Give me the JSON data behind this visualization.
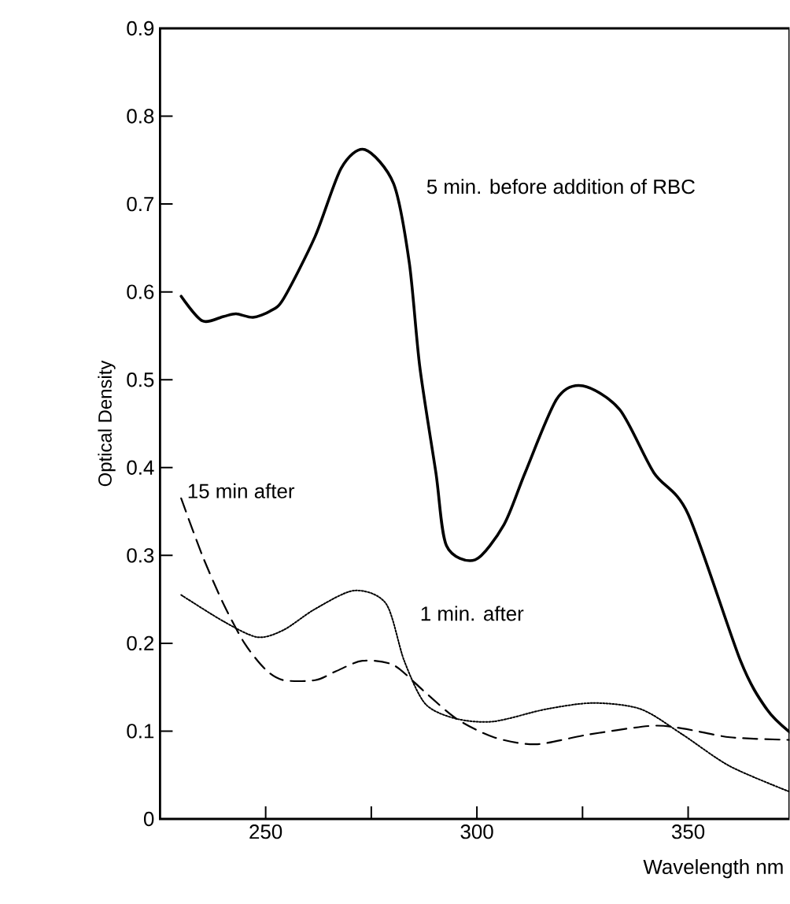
{
  "chart_data": {
    "type": "line",
    "xlabel": "Wavelength nm",
    "ylabel": "Optical Density",
    "xlim": [
      225,
      374
    ],
    "ylim": [
      0,
      0.9
    ],
    "xticks": [
      250,
      {
        "value": 275,
        "label": null
      },
      300,
      {
        "value": 325,
        "label": null
      },
      350
    ],
    "yticks": [
      0,
      0.1,
      0.2,
      0.3,
      0.4,
      0.5,
      0.6,
      0.7,
      0.8,
      0.9
    ],
    "grid": false,
    "marker": "none",
    "series": [
      {
        "name": "5 min. before addition of RBC",
        "color": "#000000",
        "line_style": "solid",
        "x": [
          230,
          235,
          240,
          243,
          247,
          251,
          254.2,
          261.7,
          267.9,
          273.5,
          280.3,
          284,
          286.5,
          290.3,
          292.8,
          299.6,
          306.4,
          311.4,
          318.9,
          325.1,
          333.8,
          341.9,
          350,
          362.4,
          368.6,
          374
        ],
        "values": [
          0.595,
          0.567,
          0.572,
          0.575,
          0.571,
          0.578,
          0.592,
          0.663,
          0.741,
          0.762,
          0.723,
          0.633,
          0.514,
          0.394,
          0.311,
          0.295,
          0.335,
          0.394,
          0.478,
          0.493,
          0.466,
          0.394,
          0.347,
          0.18,
          0.125,
          0.099
        ]
      },
      {
        "name": "1 min. after",
        "color": "#000000",
        "line_style": "dotted",
        "x": [
          230,
          240,
          248,
          254.2,
          261.7,
          271,
          278.5,
          282.8,
          287.8,
          295.2,
          304,
          316.4,
          327.6,
          338.8,
          348.7,
          359.9,
          374
        ],
        "values": [
          0.255,
          0.225,
          0.207,
          0.215,
          0.239,
          0.26,
          0.245,
          0.18,
          0.131,
          0.114,
          0.111,
          0.125,
          0.132,
          0.125,
          0.096,
          0.06,
          0.031
        ]
      },
      {
        "name": "15 min after",
        "color": "#000000",
        "line_style": "dashed",
        "x": [
          230,
          235,
          240,
          245,
          250,
          254.2,
          261.7,
          266.6,
          272.9,
          280.3,
          287.8,
          295.2,
          304,
          313.9,
          326.3,
          341.2,
          348.7,
          359.9,
          374
        ],
        "values": [
          0.365,
          0.3,
          0.245,
          0.2,
          0.17,
          0.158,
          0.158,
          0.168,
          0.18,
          0.175,
          0.144,
          0.114,
          0.093,
          0.085,
          0.096,
          0.106,
          0.103,
          0.093,
          0.09
        ]
      }
    ]
  }
}
